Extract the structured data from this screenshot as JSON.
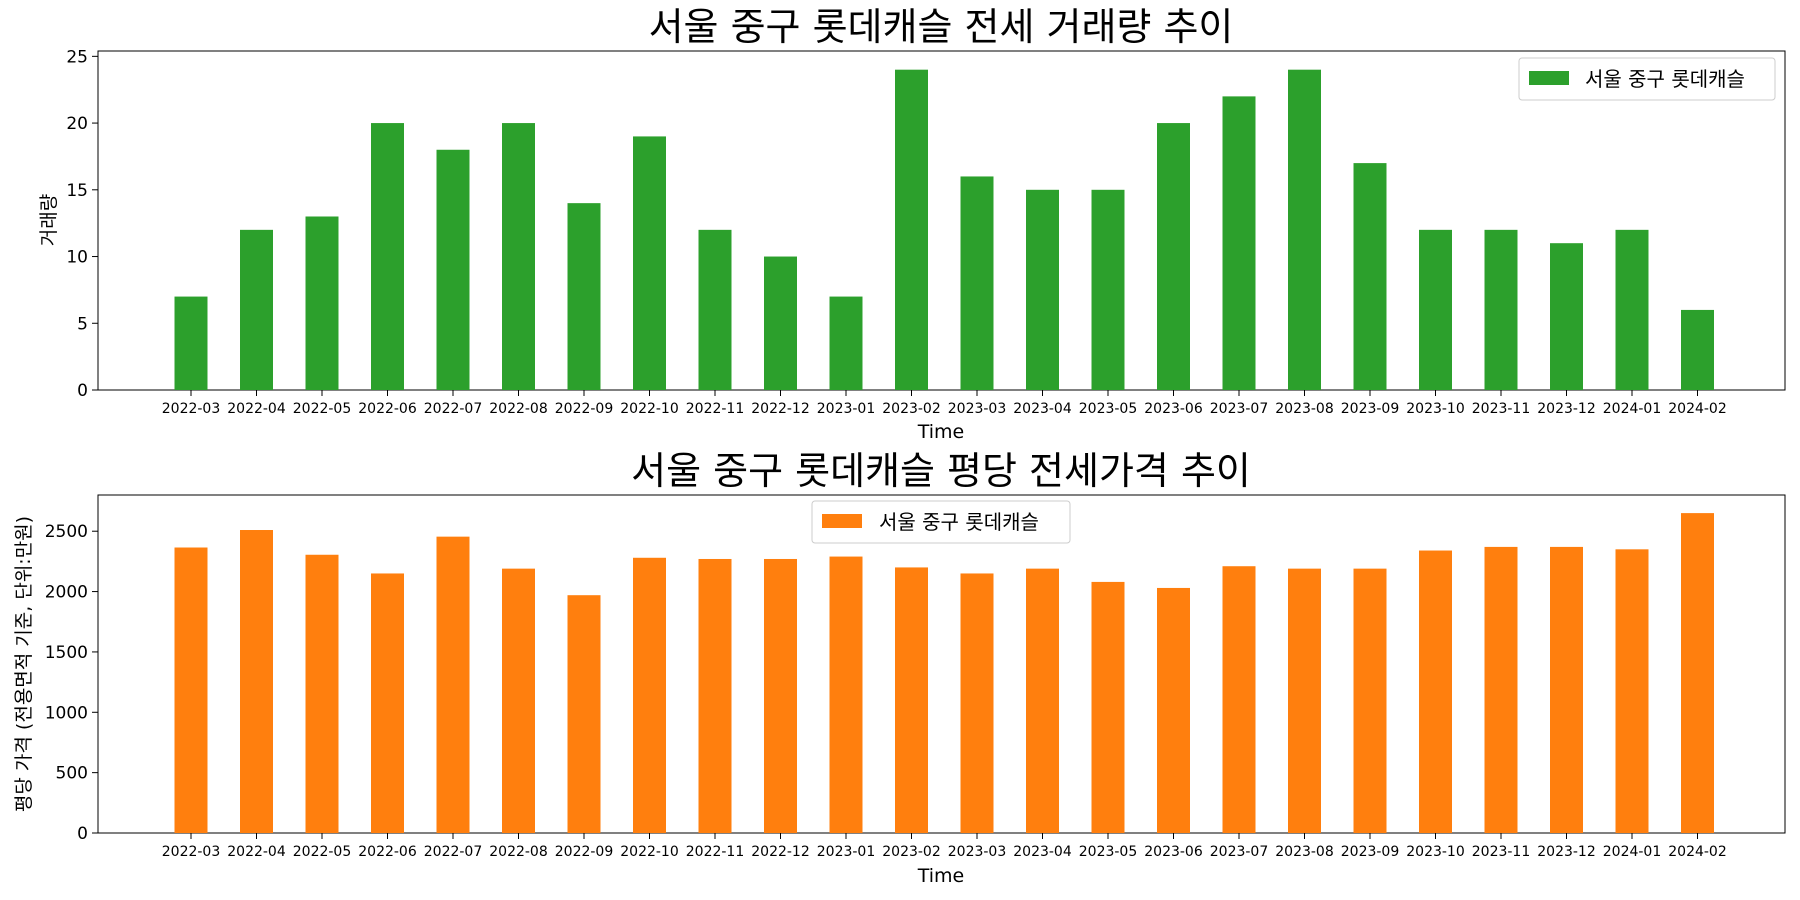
{
  "chart_data": [
    {
      "type": "bar",
      "title": "서울 중구 롯데캐슬 전세 거래량 추이",
      "xlabel": "Time",
      "ylabel": "거래량",
      "ylim": [
        0,
        25.4
      ],
      "yticks": [
        0,
        5,
        10,
        15,
        20,
        25
      ],
      "legend_position": "top-right",
      "color": "#2ca02c",
      "categories": [
        "2022-03",
        "2022-04",
        "2022-05",
        "2022-06",
        "2022-07",
        "2022-08",
        "2022-09",
        "2022-10",
        "2022-11",
        "2022-12",
        "2023-01",
        "2023-02",
        "2023-03",
        "2023-04",
        "2023-05",
        "2023-06",
        "2023-07",
        "2023-08",
        "2023-09",
        "2023-10",
        "2023-11",
        "2023-12",
        "2024-01",
        "2024-02"
      ],
      "series": [
        {
          "name": "서울 중구 롯데캐슬",
          "values": [
            7,
            12,
            13,
            20,
            18,
            20,
            14,
            19,
            12,
            10,
            7,
            24,
            16,
            15,
            15,
            20,
            22,
            24,
            17,
            12,
            12,
            11,
            12,
            6
          ]
        }
      ]
    },
    {
      "type": "bar",
      "title": "서울 중구 롯데캐슬 평당 전세가격 추이",
      "xlabel": "Time",
      "ylabel": "평당 가격 (전용면적 기준, 단위:만원)",
      "ylim": [
        0,
        2800
      ],
      "yticks": [
        0,
        500,
        1000,
        1500,
        2000,
        2500
      ],
      "legend_position": "top-center",
      "color": "#ff7f0e",
      "categories": [
        "2022-03",
        "2022-04",
        "2022-05",
        "2022-06",
        "2022-07",
        "2022-08",
        "2022-09",
        "2022-10",
        "2022-11",
        "2022-12",
        "2023-01",
        "2023-02",
        "2023-03",
        "2023-04",
        "2023-05",
        "2023-06",
        "2023-07",
        "2023-08",
        "2023-09",
        "2023-10",
        "2023-11",
        "2023-12",
        "2024-01",
        "2024-02"
      ],
      "series": [
        {
          "name": "서울 중구 롯데캐슬",
          "values": [
            2365,
            2510,
            2305,
            2150,
            2455,
            2190,
            1970,
            2280,
            2270,
            2270,
            2290,
            2200,
            2150,
            2190,
            2080,
            2030,
            2210,
            2190,
            2190,
            2340,
            2370,
            2370,
            2350,
            2650
          ]
        }
      ]
    }
  ]
}
